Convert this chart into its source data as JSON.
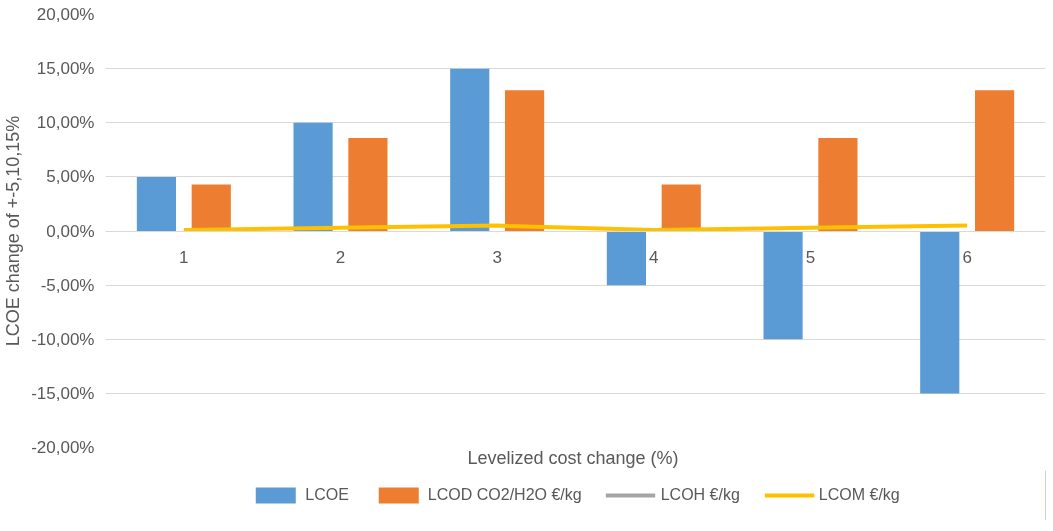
{
  "chart_data": {
    "type": "bar",
    "xlabel": "Levelized cost change  (%)",
    "ylabel": "LCOE change of +-5,10,15%",
    "categories": [
      "1",
      "2",
      "3",
      "4",
      "5",
      "6"
    ],
    "series": [
      {
        "name": "LCOE",
        "color": "#5b9bd5",
        "values": [
          5,
          10,
          15,
          -5,
          -10,
          -15
        ]
      },
      {
        "name": "LCOD CO2/H2O €/kg",
        "color": "#ed7d31",
        "values": [
          4.3,
          8.6,
          13,
          4.3,
          8.6,
          13
        ]
      },
      {
        "name": "LCOH €/kg",
        "type": "line",
        "color": "#a5a5a5",
        "values": [
          null,
          null,
          null,
          null,
          null,
          null
        ]
      },
      {
        "name": "LCOM €/kg",
        "type": "line",
        "color": "#ffc000",
        "values": [
          0.1,
          0.3,
          0.5,
          0.1,
          0.3,
          0.5
        ]
      }
    ],
    "ylim": [
      -20,
      20
    ],
    "yticks": [
      {
        "value": -20,
        "label": "-20,00%"
      },
      {
        "value": -15,
        "label": "-15,00%"
      },
      {
        "value": -10,
        "label": "-10,00%"
      },
      {
        "value": -5,
        "label": "-5,00%"
      },
      {
        "value": 0,
        "label": "0,00%"
      },
      {
        "value": 5,
        "label": "5,00%"
      },
      {
        "value": 10,
        "label": "10,00%"
      },
      {
        "value": 15,
        "label": "15,00%"
      },
      {
        "value": 20,
        "label": "20,00%"
      }
    ],
    "grid": "y",
    "legend": "bottom"
  }
}
